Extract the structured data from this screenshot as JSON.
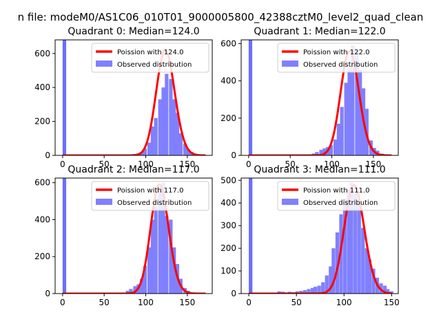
{
  "figure": {
    "suptitle": "n file: modeM0/AS1C06_010T01_9000005800_42388cztM0_level2_quad_clean"
  },
  "colors": {
    "poisson_line": "#ff0000",
    "observed_bars": "#8080ff",
    "first_bar": "#6d6dff",
    "axes": "#000000"
  },
  "chart_data": [
    {
      "type": "bar",
      "title": "Quadrant 0: Median=124.0",
      "xlim": [
        -9,
        180
      ],
      "ylim": [
        0,
        680
      ],
      "xticks": [
        0,
        50,
        100,
        150
      ],
      "yticks": [
        0,
        200,
        400,
        600
      ],
      "legend": {
        "placement": "top-right",
        "entries": [
          "Poission with 124.0",
          "Observed distribution"
        ]
      },
      "bin_width": 4.3,
      "bins": [
        [
          0,
          680
        ],
        [
          76,
          3
        ],
        [
          80,
          5
        ],
        [
          85,
          8
        ],
        [
          89,
          12
        ],
        [
          93,
          20
        ],
        [
          97,
          40
        ],
        [
          102,
          75
        ],
        [
          106,
          170
        ],
        [
          110,
          220
        ],
        [
          115,
          330
        ],
        [
          119,
          400
        ],
        [
          123,
          480
        ],
        [
          128,
          450
        ],
        [
          132,
          330
        ],
        [
          136,
          250
        ],
        [
          140,
          130
        ],
        [
          145,
          70
        ],
        [
          149,
          35
        ],
        [
          153,
          20
        ],
        [
          158,
          10
        ],
        [
          162,
          5
        ],
        [
          166,
          3
        ]
      ],
      "poisson": {
        "lambda": 124.0,
        "scale": 618,
        "x_range": [
          0,
          172
        ]
      }
    },
    {
      "type": "bar",
      "title": "Quadrant 1: Median=122.0",
      "xlim": [
        -9,
        180
      ],
      "ylim": [
        0,
        620
      ],
      "xticks": [
        0,
        50,
        100,
        150
      ],
      "yticks": [
        0,
        200,
        400,
        600
      ],
      "legend": {
        "placement": "top-right",
        "entries": [
          "Poission with 122.0",
          "Observed distribution"
        ]
      },
      "bin_width": 4.3,
      "bins": [
        [
          0,
          620
        ],
        [
          72,
          5
        ],
        [
          76,
          10
        ],
        [
          80,
          18
        ],
        [
          85,
          30
        ],
        [
          89,
          38
        ],
        [
          93,
          45
        ],
        [
          97,
          55
        ],
        [
          102,
          85
        ],
        [
          106,
          170
        ],
        [
          110,
          260
        ],
        [
          115,
          390
        ],
        [
          119,
          470
        ],
        [
          123,
          590
        ],
        [
          128,
          560
        ],
        [
          132,
          460
        ],
        [
          136,
          360
        ],
        [
          140,
          250
        ],
        [
          145,
          80
        ],
        [
          149,
          40
        ],
        [
          153,
          25
        ],
        [
          158,
          10
        ]
      ],
      "poisson": {
        "lambda": 122.0,
        "scale": 560,
        "x_range": [
          0,
          172
        ]
      }
    },
    {
      "type": "bar",
      "title": "Quadrant 2: Median=117.0",
      "xlim": [
        -9,
        180
      ],
      "ylim": [
        0,
        625
      ],
      "xticks": [
        0,
        50,
        100,
        150
      ],
      "yticks": [
        0,
        200,
        400,
        600
      ],
      "legend": {
        "placement": "top-right",
        "entries": [
          "Poission with 117.0",
          "Observed distribution"
        ]
      },
      "bin_width": 4.3,
      "bins": [
        [
          0,
          625
        ],
        [
          72,
          5
        ],
        [
          76,
          15
        ],
        [
          80,
          25
        ],
        [
          85,
          40
        ],
        [
          89,
          50
        ],
        [
          93,
          80
        ],
        [
          97,
          150
        ],
        [
          102,
          250
        ],
        [
          106,
          400
        ],
        [
          110,
          470
        ],
        [
          115,
          560
        ],
        [
          119,
          600
        ],
        [
          123,
          420
        ],
        [
          128,
          400
        ],
        [
          132,
          250
        ],
        [
          136,
          160
        ],
        [
          140,
          80
        ],
        [
          145,
          30
        ],
        [
          149,
          15
        ]
      ],
      "poisson": {
        "lambda": 117.0,
        "scale": 590,
        "x_range": [
          0,
          172
        ]
      }
    },
    {
      "type": "bar",
      "title": "Quadrant 3: Median=111.0",
      "xlim": [
        -8,
        157
      ],
      "ylim": [
        0,
        510
      ],
      "xticks": [
        0,
        50,
        100,
        150
      ],
      "yticks": [
        0,
        100,
        200,
        300,
        400,
        500
      ],
      "legend": {
        "placement": "top-right",
        "entries": [
          "Poission with 111.0",
          "Observed distribution"
        ]
      },
      "bin_width": 3.8,
      "bins": [
        [
          0,
          510
        ],
        [
          30,
          10
        ],
        [
          34,
          8
        ],
        [
          38,
          5
        ],
        [
          41,
          8
        ],
        [
          45,
          6
        ],
        [
          49,
          10
        ],
        [
          53,
          12
        ],
        [
          57,
          15
        ],
        [
          61,
          20
        ],
        [
          65,
          25
        ],
        [
          68,
          30
        ],
        [
          72,
          35
        ],
        [
          76,
          50
        ],
        [
          80,
          80
        ],
        [
          84,
          120
        ],
        [
          87,
          200
        ],
        [
          91,
          270
        ],
        [
          95,
          350
        ],
        [
          99,
          420
        ],
        [
          103,
          460
        ],
        [
          106,
          490
        ],
        [
          110,
          440
        ],
        [
          114,
          400
        ],
        [
          118,
          290
        ],
        [
          122,
          200
        ],
        [
          125,
          150
        ],
        [
          129,
          110
        ],
        [
          133,
          70
        ],
        [
          137,
          45
        ],
        [
          141,
          35
        ],
        [
          144,
          20
        ],
        [
          148,
          10
        ]
      ],
      "poisson": {
        "lambda": 111.0,
        "scale": 478,
        "x_range": [
          0,
          150
        ]
      }
    }
  ]
}
